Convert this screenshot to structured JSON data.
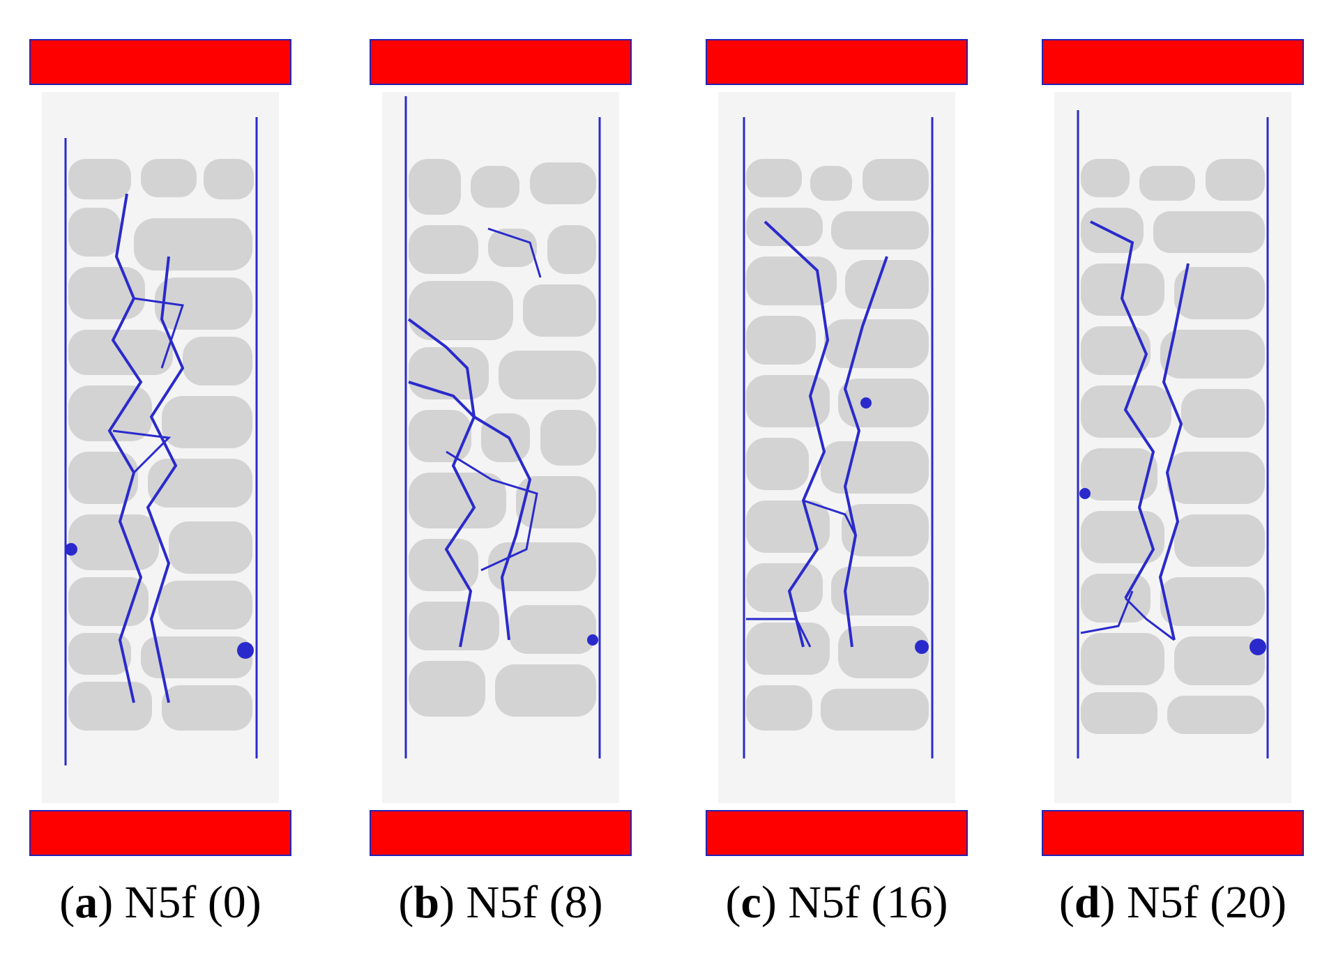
{
  "panels": [
    {
      "letter": "a",
      "name": "N5f",
      "value": "(0)"
    },
    {
      "letter": "b",
      "name": "N5f",
      "value": "(8)"
    },
    {
      "letter": "c",
      "name": "N5f",
      "value": "(16)"
    },
    {
      "letter": "d",
      "name": "N5f",
      "value": "(20)"
    }
  ],
  "colors": {
    "platen_fill": "#ff0000",
    "platen_border": "#2323b4",
    "aggregate": "#d3d3d3",
    "crack": "#2a2acc",
    "mortar": "#f4f4f4"
  }
}
